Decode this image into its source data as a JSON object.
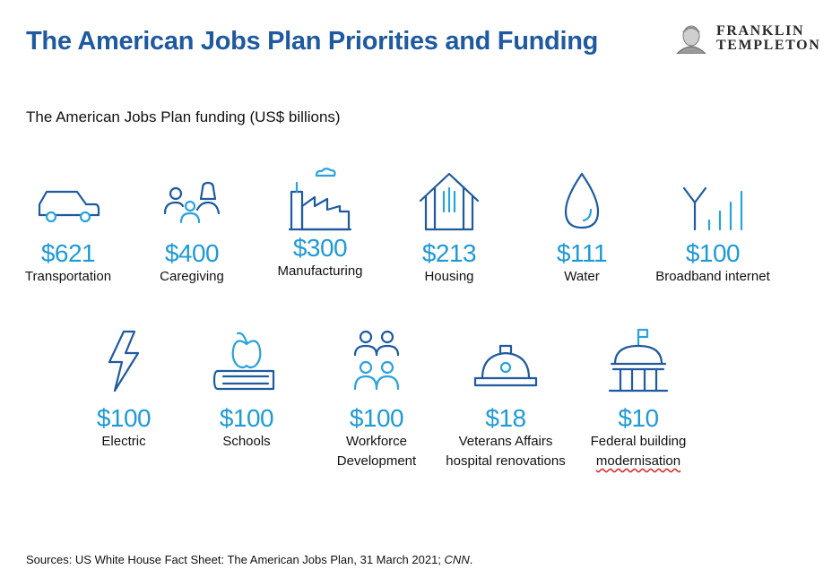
{
  "header": {
    "title": "The American Jobs Plan Priorities and Funding",
    "logo_line1": "FRANKLIN",
    "logo_line2": "TEMPLETON"
  },
  "subtitle": "The American Jobs Plan funding (US$ billions)",
  "colors": {
    "title": "#1f5aa0",
    "amount": "#1e9ad6",
    "icon_stroke": "#1f5aa0",
    "icon_accent": "#2aa2dc"
  },
  "row1": [
    {
      "icon": "car-icon",
      "amount": "$621",
      "label": "Transportation"
    },
    {
      "icon": "family-icon",
      "amount": "$400",
      "label": "Caregiving"
    },
    {
      "icon": "factory-icon",
      "amount": "$300",
      "label": "Manufacturing"
    },
    {
      "icon": "house-icon",
      "amount": "$213",
      "label": "Housing"
    },
    {
      "icon": "water-drop-icon",
      "amount": "$111",
      "label": "Water"
    },
    {
      "icon": "antenna-signal-icon",
      "amount": "$100",
      "label": "Broadband internet"
    }
  ],
  "row2": [
    {
      "icon": "lightning-icon",
      "amount": "$100",
      "label": "Electric"
    },
    {
      "icon": "apple-book-icon",
      "amount": "$100",
      "label": "Schools"
    },
    {
      "icon": "people-group-icon",
      "amount": "$100",
      "label_line1": "Workforce",
      "label_line2": "Development"
    },
    {
      "icon": "hard-hat-icon",
      "amount": "$18",
      "label_line1": "Veterans Affairs",
      "label_line2": "hospital renovations"
    },
    {
      "icon": "government-building-icon",
      "amount": "$10",
      "label_line1": "Federal building",
      "label_line2": "modernisation"
    }
  ],
  "source": {
    "prefix": "Sources: US White House Fact Sheet: The American Jobs Plan, 31 March 2021; ",
    "italic": "CNN",
    "suffix": "."
  }
}
